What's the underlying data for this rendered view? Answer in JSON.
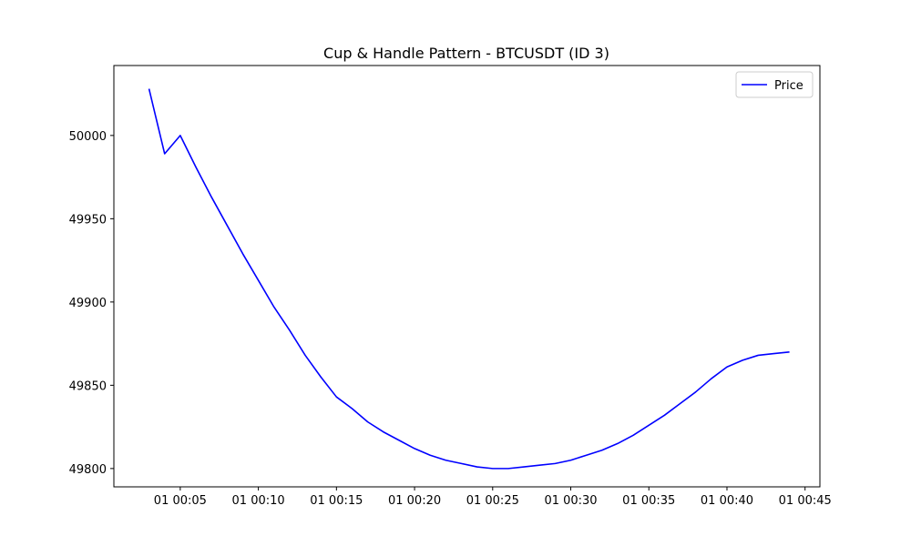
{
  "chart_data": {
    "type": "line",
    "title": "Cup & Handle Pattern - BTCUSDT (ID 3)",
    "xlabel": "",
    "ylabel": "",
    "x_unit": "time (minutes past 00:00)",
    "xlim": [
      0.75,
      45.95
    ],
    "ylim": [
      49789,
      50042
    ],
    "x_ticks": [
      {
        "value": 5,
        "label": "01 00:05"
      },
      {
        "value": 10,
        "label": "01 00:10"
      },
      {
        "value": 15,
        "label": "01 00:15"
      },
      {
        "value": 20,
        "label": "01 00:20"
      },
      {
        "value": 25,
        "label": "01 00:25"
      },
      {
        "value": 30,
        "label": "01 00:30"
      },
      {
        "value": 35,
        "label": "01 00:35"
      },
      {
        "value": 40,
        "label": "01 00:40"
      },
      {
        "value": 45,
        "label": "01 00:45"
      }
    ],
    "y_ticks": [
      {
        "value": 50000,
        "label": "50000"
      },
      {
        "value": 49950,
        "label": "49950"
      },
      {
        "value": 49900,
        "label": "49900"
      },
      {
        "value": 49850,
        "label": "49850"
      },
      {
        "value": 49800,
        "label": "49800"
      }
    ],
    "grid": false,
    "legend": {
      "position": "top-right"
    },
    "series": [
      {
        "name": "Price",
        "color": "#0000ff",
        "x": [
          3,
          4,
          5,
          6,
          7,
          8,
          9,
          10,
          11,
          12,
          13,
          14,
          15,
          16,
          17,
          18,
          19,
          20,
          21,
          22,
          23,
          24,
          25,
          26,
          27,
          28,
          29,
          30,
          31,
          32,
          33,
          34,
          35,
          36,
          37,
          38,
          39,
          40,
          41,
          42,
          43,
          44
        ],
        "values": [
          50028,
          49989,
          50000,
          49981,
          49963,
          49946,
          49929,
          49913,
          49897,
          49883,
          49868,
          49855,
          49843,
          49836,
          49828,
          49822,
          49817,
          49812,
          49808,
          49805,
          49803,
          49801,
          49800,
          49800,
          49801,
          49802,
          49803,
          49805,
          49808,
          49811,
          49815,
          49820,
          49826,
          49832,
          49839,
          49846,
          49854,
          49861,
          49865,
          49868,
          49869,
          49870
        ]
      }
    ]
  }
}
